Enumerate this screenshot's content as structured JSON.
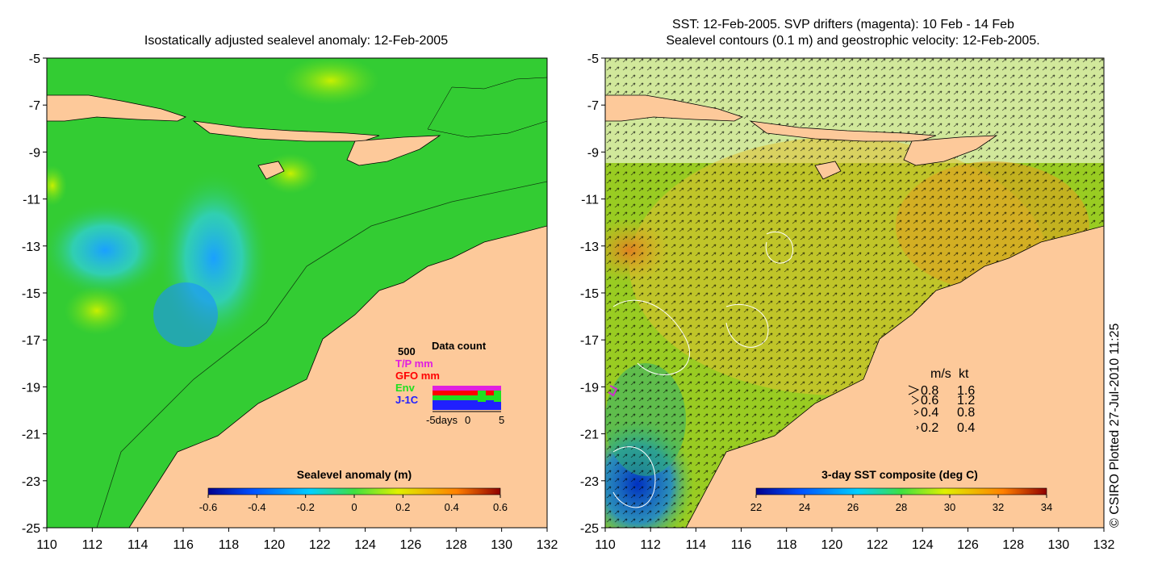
{
  "left_panel": {
    "title": "Isostatically adjusted sealevel anomaly: 12-Feb-2005",
    "colorbar": {
      "title": "Sealevel anomaly (m)",
      "ticks": [
        "-0.6",
        "-0.4",
        "-0.2",
        "0",
        "0.2",
        "0.4",
        "0.6"
      ],
      "range": [
        -0.6,
        0.6
      ]
    },
    "data_count": {
      "title": "Data count",
      "max_label": "500",
      "series": [
        {
          "label": "T/P mm",
          "color": "#e020e0"
        },
        {
          "label": "GFO mm",
          "color": "#ff0000"
        },
        {
          "label": "Env",
          "color": "#20e020"
        },
        {
          "label": "J-1C",
          "color": "#2020ff"
        }
      ],
      "x_labels": [
        "-5days",
        "0",
        "5"
      ]
    }
  },
  "right_panel": {
    "title_line1": "SST: 12-Feb-2005. SVP drifters (magenta): 10 Feb - 14 Feb",
    "title_line2": "Sealevel contours (0.1 m) and geostrophic velocity: 12-Feb-2005.",
    "colorbar": {
      "title": "3-day SST composite (deg C)",
      "ticks": [
        "22",
        "24",
        "26",
        "28",
        "30",
        "32",
        "34"
      ],
      "range": [
        22,
        34
      ]
    },
    "velocity_legend": {
      "header_ms": "m/s",
      "header_kt": "kt",
      "rows": [
        {
          "ms": "0.8",
          "kt": "1.6"
        },
        {
          "ms": "0.6",
          "kt": "1.2"
        },
        {
          "ms": "0.4",
          "kt": "0.8"
        },
        {
          "ms": "0.2",
          "kt": "0.4"
        }
      ]
    },
    "credit": "© CSIRO Plotted 27-Jul-2010 11:25"
  },
  "axes": {
    "x_ticks": [
      "110",
      "112",
      "114",
      "116",
      "118",
      "120",
      "122",
      "124",
      "126",
      "128",
      "130",
      "132"
    ],
    "y_ticks": [
      "-5",
      "-7",
      "-9",
      "-11",
      "-13",
      "-15",
      "-17",
      "-19",
      "-21",
      "-23",
      "-25"
    ],
    "lon_range": [
      110,
      132
    ],
    "lat_range": [
      -25,
      -5
    ]
  },
  "colors": {
    "land": "#fdc99a",
    "ocean_left": "#33cc33",
    "ocean_right": "#99cc22"
  }
}
